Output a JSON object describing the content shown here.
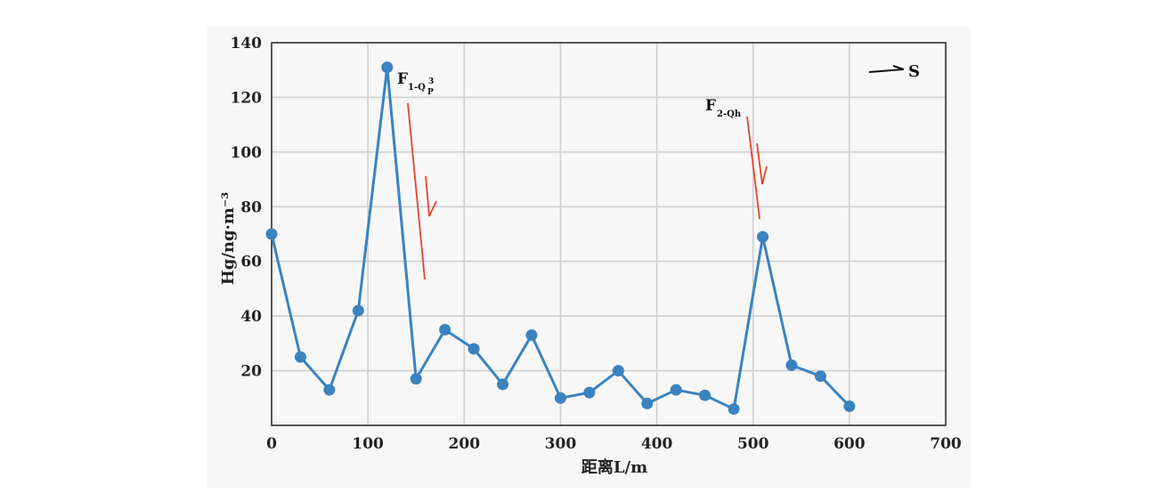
{
  "chart_data": {
    "type": "line",
    "xlabel": "距离L/m",
    "ylabel": "Hg/ng·m⁻³",
    "xlim": [
      0,
      700
    ],
    "ylim": [
      0,
      140
    ],
    "x_ticks": [
      "0",
      "100",
      "200",
      "300",
      "400",
      "500",
      "600",
      "700"
    ],
    "y_ticks": [
      "20",
      "40",
      "60",
      "80",
      "100",
      "120",
      "140"
    ],
    "grid": true,
    "series": [
      {
        "color": "#3a83c0",
        "x": [
          0,
          30,
          60,
          90,
          120,
          150,
          180,
          210,
          240,
          270,
          300,
          330,
          360,
          390,
          420,
          450,
          480,
          510,
          540,
          570,
          600
        ],
        "y": [
          70,
          25,
          13,
          42,
          131,
          17,
          35,
          28,
          15,
          33,
          10,
          12,
          20,
          8,
          13,
          11,
          6,
          69,
          22,
          18,
          7
        ]
      }
    ],
    "annotations": [
      {
        "label": "F",
        "subscript": "1-Q",
        "superscript": "3",
        "sub2": "P",
        "fault_color": "#e8432e"
      },
      {
        "label": "F",
        "subscript": "2-Qh",
        "fault_color": "#e8432e"
      }
    ],
    "direction_label": "S"
  }
}
